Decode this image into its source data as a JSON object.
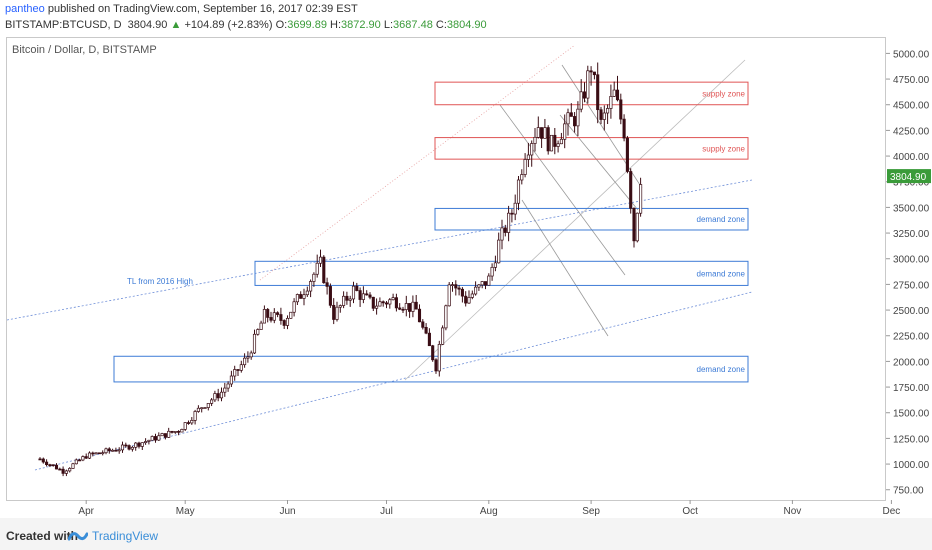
{
  "header": {
    "author": "pantheo",
    "published_text": "published on TradingView.com, September 16, 2017 02:39 EST",
    "symbol": "BITSTAMP:BTCUSD, D",
    "last": "3804.90",
    "change_arrow": "▲",
    "change": "+104.89 (+2.83%)",
    "o_label": "O:",
    "o_value": "3699.89",
    "h_label": "H:",
    "h_value": "3872.90",
    "l_label": "L:",
    "l_value": "3687.48",
    "c_label": "C:",
    "c_value": "3804.90"
  },
  "chart_title": "Bitcoin / Dollar, D, BITSTAMP",
  "footer": {
    "created_with": "Created with",
    "brand": "TradingView",
    "logo_icon": "tradingview-logo-icon"
  },
  "colors": {
    "up_candle": "#ffffff",
    "down_candle": "#3a0d14",
    "supply_zone": "#e05555",
    "demand_zone": "#3d7bd6",
    "last_price_label": "#3a9b39"
  },
  "chart_data": {
    "type": "candlestick",
    "title": "Bitcoin / Dollar, D, BITSTAMP",
    "ylim": [
      650,
      5150
    ],
    "y_ticks": [
      750,
      1000,
      1250,
      1500,
      1750,
      2000,
      2250,
      2500,
      2750,
      3000,
      3250,
      3500,
      3750,
      4000,
      4250,
      4500,
      4750,
      5000
    ],
    "x_tick_labels": [
      "Apr",
      "May",
      "Jun",
      "Jul",
      "Aug",
      "Sep",
      "Oct",
      "Nov",
      "Dec"
    ],
    "last_price": 3804.9,
    "last_price_label": "3804.90",
    "grid": false,
    "zones": [
      {
        "kind": "supply",
        "label": "supply zone",
        "low": 4500,
        "high": 4720
      },
      {
        "kind": "supply",
        "label": "supply zone",
        "low": 3970,
        "high": 4180
      },
      {
        "kind": "demand",
        "label": "demand zone",
        "low": 3280,
        "high": 3490
      },
      {
        "kind": "demand",
        "label": "demand zone",
        "low": 2740,
        "high": 2975
      },
      {
        "kind": "demand",
        "label": "demand zone",
        "low": 1800,
        "high": 2050
      }
    ],
    "annotations": [
      {
        "text": "TL from 2016 High"
      }
    ],
    "ohlc_anchors": [
      {
        "date": "2017-03-18",
        "close": 1050
      },
      {
        "date": "2017-03-25",
        "close": 930
      },
      {
        "date": "2017-04-01",
        "close": 1080
      },
      {
        "date": "2017-04-15",
        "close": 1180
      },
      {
        "date": "2017-04-29",
        "close": 1330
      },
      {
        "date": "2017-05-06",
        "close": 1560
      },
      {
        "date": "2017-05-12",
        "close": 1700
      },
      {
        "date": "2017-05-20",
        "close": 2050
      },
      {
        "date": "2017-05-25",
        "close": 2450
      },
      {
        "date": "2017-05-31",
        "close": 2400
      },
      {
        "date": "2017-06-06",
        "close": 2700
      },
      {
        "date": "2017-06-11",
        "close": 2950
      },
      {
        "date": "2017-06-15",
        "close": 2450
      },
      {
        "date": "2017-06-21",
        "close": 2700
      },
      {
        "date": "2017-06-27",
        "close": 2550
      },
      {
        "date": "2017-07-03",
        "close": 2600
      },
      {
        "date": "2017-07-10",
        "close": 2500
      },
      {
        "date": "2017-07-16",
        "close": 1950
      },
      {
        "date": "2017-07-20",
        "close": 2800
      },
      {
        "date": "2017-07-25",
        "close": 2600
      },
      {
        "date": "2017-08-01",
        "close": 2800
      },
      {
        "date": "2017-08-04",
        "close": 3150
      },
      {
        "date": "2017-08-08",
        "close": 3450
      },
      {
        "date": "2017-08-12",
        "close": 4050
      },
      {
        "date": "2017-08-16",
        "close": 4300
      },
      {
        "date": "2017-08-20",
        "close": 4100
      },
      {
        "date": "2017-08-24",
        "close": 4300
      },
      {
        "date": "2017-08-28",
        "close": 4400
      },
      {
        "date": "2017-09-01",
        "close": 4880
      },
      {
        "date": "2017-09-04",
        "close": 4300
      },
      {
        "date": "2017-09-08",
        "close": 4600
      },
      {
        "date": "2017-09-11",
        "close": 4250
      },
      {
        "date": "2017-09-14",
        "close": 3200
      },
      {
        "date": "2017-09-16",
        "close": 3800
      }
    ]
  }
}
